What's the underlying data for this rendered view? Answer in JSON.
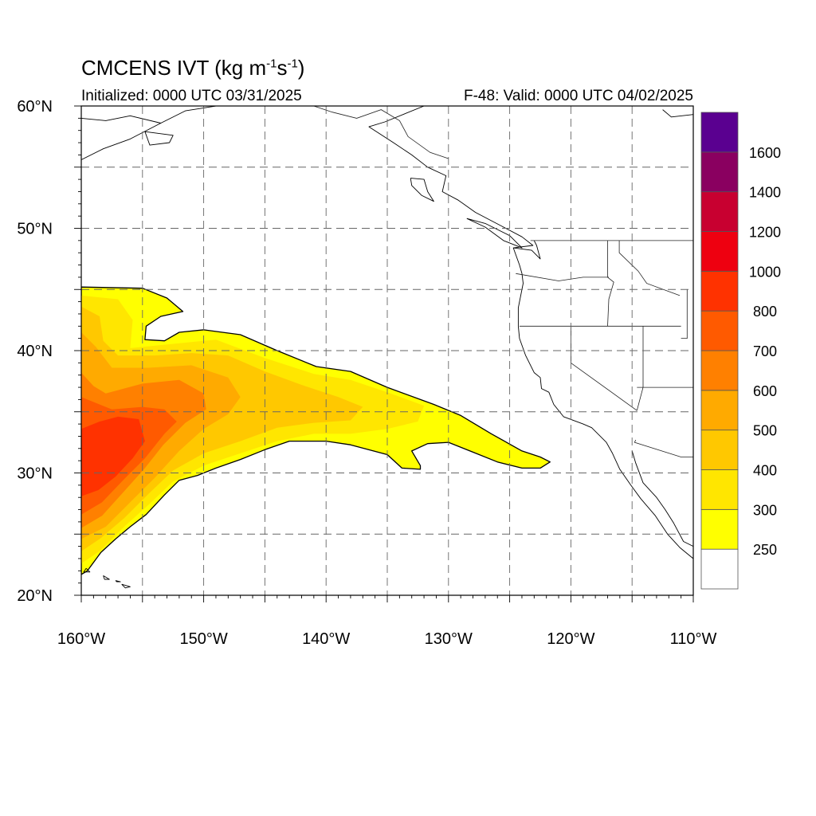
{
  "header": {
    "title_prefix": "CMCENS IVT (kg m",
    "title_exp1": "-1",
    "title_mid": "s",
    "title_exp2": "-1",
    "title_suffix": ")",
    "initialized": "Initialized: 0000 UTC 03/31/2025",
    "valid": "F-48: Valid: 0000 UTC 04/02/2025"
  },
  "map": {
    "projection": "cylindrical equidistant",
    "lon_range": [
      -160,
      -110
    ],
    "lat_range": [
      20,
      60
    ],
    "lat_ticks": [
      {
        "value": 20,
        "label": "20°N"
      },
      {
        "value": 30,
        "label": "30°N"
      },
      {
        "value": 40,
        "label": "40°N"
      },
      {
        "value": 50,
        "label": "50°N"
      },
      {
        "value": 60,
        "label": "60°N"
      }
    ],
    "lon_ticks": [
      {
        "value": -160,
        "label": "160°W"
      },
      {
        "value": -150,
        "label": "150°W"
      },
      {
        "value": -140,
        "label": "140°W"
      },
      {
        "value": -130,
        "label": "130°W"
      },
      {
        "value": -120,
        "label": "120°W"
      },
      {
        "value": -110,
        "label": "110°W"
      }
    ],
    "gridlines": "dashed, every 5°",
    "background": "#ffffff",
    "features": [
      "coastlines",
      "US state borders",
      "Canada-US border",
      "Mexico border"
    ]
  },
  "colorbar": {
    "orientation": "vertical",
    "placement": "right",
    "levels": [
      {
        "label": "",
        "color": "#ffffff"
      },
      {
        "label": "250",
        "color": "#ffff00"
      },
      {
        "label": "300",
        "color": "#ffe600"
      },
      {
        "label": "400",
        "color": "#ffc800"
      },
      {
        "label": "500",
        "color": "#ffaa00"
      },
      {
        "label": "600",
        "color": "#ff8000"
      },
      {
        "label": "700",
        "color": "#ff5a00"
      },
      {
        "label": "800",
        "color": "#ff3200"
      },
      {
        "label": "1000",
        "color": "#ee0010"
      },
      {
        "label": "1200",
        "color": "#c80030"
      },
      {
        "label": "1400",
        "color": "#8a0060"
      },
      {
        "label": "1600",
        "color": "#5a0090"
      }
    ]
  },
  "chart_data": {
    "type": "heatmap",
    "variable": "Integrated vapor transport",
    "units": "kg m-1 s-1",
    "region": {
      "lon": [
        -160,
        -110
      ],
      "lat": [
        20,
        60
      ]
    },
    "thresholds": [
      250,
      300,
      400,
      500,
      600,
      700,
      800,
      1000,
      1200,
      1400,
      1600
    ],
    "atmospheric_river": {
      "max_ivt_approx": 800,
      "max_location": {
        "lon": -157,
        "lat": 32
      },
      "extent_lon": [
        -160,
        -121
      ],
      "extent_lat": [
        21,
        45
      ]
    },
    "contour_regions": [
      {
        "min_ivt": 250,
        "color": "#ffff00",
        "polygon": [
          [
            -160,
            45.2
          ],
          [
            -155,
            45.1
          ],
          [
            -153,
            44.3
          ],
          [
            -151.7,
            43.2
          ],
          [
            -153.5,
            42.8
          ],
          [
            -154.7,
            42
          ],
          [
            -154.8,
            40.9
          ],
          [
            -153.2,
            40.8
          ],
          [
            -152,
            41.5
          ],
          [
            -150,
            41.7
          ],
          [
            -147,
            41.3
          ],
          [
            -144,
            40
          ],
          [
            -140.8,
            38.7
          ],
          [
            -138,
            38.3
          ],
          [
            -135,
            37
          ],
          [
            -131.2,
            35.6
          ],
          [
            -129,
            34.7
          ],
          [
            -126.5,
            33.2
          ],
          [
            -124,
            31.8
          ],
          [
            -122.5,
            31.3
          ],
          [
            -121.7,
            30.9
          ],
          [
            -122.5,
            30.4
          ],
          [
            -124,
            30.4
          ],
          [
            -126,
            30.9
          ],
          [
            -128,
            31.7
          ],
          [
            -130,
            32.5
          ],
          [
            -131.7,
            32.4
          ],
          [
            -133,
            31.8
          ],
          [
            -132.3,
            30.6
          ],
          [
            -132.3,
            30.3
          ],
          [
            -133.8,
            30.4
          ],
          [
            -135,
            31.5
          ],
          [
            -138,
            32.3
          ],
          [
            -140,
            32.6
          ],
          [
            -143,
            32.6
          ],
          [
            -145,
            31.9
          ],
          [
            -147,
            31.1
          ],
          [
            -149,
            30.4
          ],
          [
            -150.5,
            29.8
          ],
          [
            -152,
            29.4
          ],
          [
            -153.2,
            28.2
          ],
          [
            -154.7,
            26.6
          ],
          [
            -156,
            25.6
          ],
          [
            -157.2,
            24.6
          ],
          [
            -158.4,
            23.5
          ],
          [
            -159.5,
            22.0
          ],
          [
            -160,
            21.7
          ]
        ]
      },
      {
        "min_ivt": 300,
        "color": "#ffe600",
        "polygon": [
          [
            -160,
            44.5
          ],
          [
            -157,
            44.2
          ],
          [
            -155.8,
            42.5
          ],
          [
            -156,
            40.2
          ],
          [
            -152,
            40.6
          ],
          [
            -149,
            40.9
          ],
          [
            -145,
            39.4
          ],
          [
            -141,
            38.1
          ],
          [
            -138,
            37.6
          ],
          [
            -135,
            36.6
          ],
          [
            -132,
            35.5
          ],
          [
            -132.5,
            34.2
          ],
          [
            -135,
            33.6
          ],
          [
            -138,
            33.2
          ],
          [
            -141,
            33.2
          ],
          [
            -144,
            32.6
          ],
          [
            -147,
            31.6
          ],
          [
            -150,
            30.6
          ],
          [
            -152.5,
            29.3
          ],
          [
            -154.5,
            27.4
          ],
          [
            -156.5,
            25.6
          ],
          [
            -158.5,
            23.6
          ],
          [
            -160,
            22.6
          ]
        ]
      },
      {
        "min_ivt": 400,
        "color": "#ffc800",
        "polygon": [
          [
            -160,
            43.6
          ],
          [
            -158.5,
            42.8
          ],
          [
            -158.2,
            40.8
          ],
          [
            -157,
            39.6
          ],
          [
            -154,
            39.6
          ],
          [
            -151,
            39.8
          ],
          [
            -148,
            39.6
          ],
          [
            -145,
            38.3
          ],
          [
            -142,
            37.2
          ],
          [
            -139,
            36.2
          ],
          [
            -137,
            35.4
          ],
          [
            -138,
            34.3
          ],
          [
            -141,
            34.1
          ],
          [
            -144,
            33.7
          ],
          [
            -147,
            32.6
          ],
          [
            -150,
            31.6
          ],
          [
            -152.5,
            30.2
          ],
          [
            -154.5,
            28.3
          ],
          [
            -156.5,
            26.3
          ],
          [
            -158.5,
            24.6
          ],
          [
            -160,
            23.6
          ]
        ]
      },
      {
        "min_ivt": 500,
        "color": "#ffaa00",
        "polygon": [
          [
            -160,
            41.5
          ],
          [
            -158.8,
            40.3
          ],
          [
            -157.5,
            38.6
          ],
          [
            -154.5,
            38.6
          ],
          [
            -151,
            38.8
          ],
          [
            -148,
            37.8
          ],
          [
            -147,
            36.2
          ],
          [
            -148,
            34.8
          ],
          [
            -150,
            33.6
          ],
          [
            -152,
            31.8
          ],
          [
            -154,
            29.6
          ],
          [
            -156,
            27.6
          ],
          [
            -158,
            25.6
          ],
          [
            -160,
            24.6
          ]
        ]
      },
      {
        "min_ivt": 600,
        "color": "#ff8000",
        "polygon": [
          [
            -160,
            38.2
          ],
          [
            -159,
            37.1
          ],
          [
            -158,
            36.5
          ],
          [
            -155,
            37.3
          ],
          [
            -152,
            37.6
          ],
          [
            -150,
            36.5
          ],
          [
            -149.8,
            35.2
          ],
          [
            -151.5,
            34.1
          ],
          [
            -153.3,
            32.3
          ],
          [
            -154.8,
            30.4
          ],
          [
            -156.5,
            28.5
          ],
          [
            -158.3,
            26.5
          ],
          [
            -160,
            25.5
          ]
        ]
      },
      {
        "min_ivt": 700,
        "color": "#ff5a00",
        "polygon": [
          [
            -160,
            36.2
          ],
          [
            -157.5,
            35.2
          ],
          [
            -155,
            35.4
          ],
          [
            -153.2,
            35.2
          ],
          [
            -152.2,
            34.2
          ],
          [
            -153.2,
            33.2
          ],
          [
            -154.8,
            31.2
          ],
          [
            -156.5,
            29.5
          ],
          [
            -158.3,
            27.6
          ],
          [
            -160,
            26.6
          ]
        ]
      },
      {
        "min_ivt": 800,
        "color": "#ff3200",
        "polygon": [
          [
            -160,
            33.6
          ],
          [
            -158.5,
            34.2
          ],
          [
            -157,
            34.6
          ],
          [
            -155.3,
            34.4
          ],
          [
            -154.8,
            32.6
          ],
          [
            -155.8,
            31.2
          ],
          [
            -157.2,
            29.7
          ],
          [
            -158.6,
            28.6
          ],
          [
            -160,
            28.1
          ]
        ]
      }
    ]
  },
  "geography": {
    "polylines": [
      [
        [
          -118.5,
          60
        ],
        [
          -132,
          60
        ],
        [
          -135.2,
          58.7
        ],
        [
          -136.5,
          58.3
        ],
        [
          -134.5,
          57
        ],
        [
          -133,
          56
        ],
        [
          -131.7,
          55
        ],
        [
          -130.2,
          54.3
        ],
        [
          -130.5,
          53
        ],
        [
          -129.2,
          52.3
        ],
        [
          -127.8,
          51.3
        ],
        [
          -125.5,
          50.1
        ],
        [
          -124,
          49.3
        ],
        [
          -123.1,
          48.6
        ],
        [
          -124.7,
          48.4
        ],
        [
          -124.2,
          47
        ],
        [
          -124,
          46.3
        ],
        [
          -123.9,
          45.5
        ],
        [
          -124.3,
          43.5
        ],
        [
          -124.3,
          42
        ],
        [
          -124.2,
          41
        ],
        [
          -123.7,
          39.6
        ],
        [
          -123,
          38.2
        ],
        [
          -122.5,
          37.8
        ],
        [
          -122.4,
          36.9
        ],
        [
          -121.8,
          36.6
        ],
        [
          -121.4,
          35.6
        ],
        [
          -120.6,
          34.6
        ],
        [
          -119,
          34
        ],
        [
          -118.3,
          33.7
        ],
        [
          -117.1,
          32.5
        ],
        [
          -116.6,
          31.6
        ],
        [
          -116,
          30.3
        ],
        [
          -115.1,
          29
        ],
        [
          -114.3,
          27.9
        ],
        [
          -113.1,
          26.5
        ],
        [
          -112.1,
          25
        ],
        [
          -111.1,
          23.9
        ],
        [
          -110,
          23
        ]
      ],
      [
        [
          -124.7,
          48.4
        ],
        [
          -123.2,
          48.2
        ],
        [
          -122.5,
          47.5
        ],
        [
          -122.8,
          48.6
        ],
        [
          -123,
          49
        ]
      ],
      [
        [
          -128.5,
          50.8
        ],
        [
          -127,
          50.1
        ],
        [
          -125.5,
          49
        ],
        [
          -124,
          48.4
        ],
        [
          -125,
          49.4
        ],
        [
          -127,
          50.4
        ],
        [
          -128.5,
          50.8
        ]
      ],
      [
        [
          -133.1,
          54.1
        ],
        [
          -132,
          54
        ],
        [
          -131.7,
          53
        ],
        [
          -131.2,
          52.2
        ],
        [
          -132.2,
          52.7
        ],
        [
          -133,
          53.5
        ],
        [
          -133.1,
          54.1
        ]
      ],
      [
        [
          -115,
          31.8
        ],
        [
          -114.7,
          30.8
        ],
        [
          -114.1,
          29.2
        ],
        [
          -113,
          28
        ],
        [
          -112.3,
          27
        ],
        [
          -111.6,
          25.9
        ],
        [
          -110.8,
          24.4
        ],
        [
          -110,
          24
        ]
      ],
      [
        [
          -160,
          59
        ],
        [
          -158,
          58.8
        ],
        [
          -156,
          59.2
        ],
        [
          -153.5,
          58.6
        ],
        [
          -156,
          57.3
        ],
        [
          -158.2,
          56.5
        ],
        [
          -160,
          55.6
        ]
      ],
      [
        [
          -153.5,
          58.6
        ],
        [
          -151.5,
          59.6
        ],
        [
          -149,
          60
        ]
      ],
      [
        [
          -154.8,
          57.9
        ],
        [
          -152.5,
          57.6
        ],
        [
          -152.8,
          57
        ],
        [
          -154.4,
          56.8
        ],
        [
          -154.8,
          57.9
        ]
      ],
      [
        [
          -159.6,
          22.2
        ],
        [
          -159.3,
          21.9
        ],
        [
          -159.8,
          21.9
        ],
        [
          -159.6,
          22.2
        ]
      ],
      [
        [
          -158.2,
          21.6
        ],
        [
          -157.7,
          21.3
        ],
        [
          -158.1,
          21.3
        ],
        [
          -158.2,
          21.6
        ]
      ],
      [
        [
          -157.2,
          21.2
        ],
        [
          -156.8,
          21.1
        ],
        [
          -157.1,
          21.1
        ],
        [
          -157.2,
          21.2
        ]
      ],
      [
        [
          -156.7,
          20.9
        ],
        [
          -156,
          20.7
        ],
        [
          -156.4,
          20.6
        ],
        [
          -156.7,
          20.9
        ]
      ],
      [
        [
          -112.5,
          59.7
        ],
        [
          -111.8,
          59.1
        ],
        [
          -110,
          59.3
        ]
      ]
    ],
    "borders": [
      [
        [
          -141,
          60
        ],
        [
          -139.5,
          59.5
        ],
        [
          -137.5,
          59
        ],
        [
          -135.5,
          59.7
        ],
        [
          -134,
          58.8
        ],
        [
          -133.3,
          57.5
        ],
        [
          -131.5,
          56.2
        ],
        [
          -130,
          55.7
        ]
      ],
      [
        [
          -123.3,
          49
        ],
        [
          -110,
          49
        ]
      ],
      [
        [
          -124.5,
          46.3
        ],
        [
          -121,
          45.7
        ],
        [
          -119,
          46
        ],
        [
          -116.9,
          46
        ]
      ],
      [
        [
          -124.2,
          42
        ],
        [
          -111,
          42
        ]
      ],
      [
        [
          -120,
          42
        ],
        [
          -120,
          39
        ],
        [
          -114.6,
          35.1
        ]
      ],
      [
        [
          -117,
          49
        ],
        [
          -117,
          46
        ],
        [
          -116.5,
          45.6
        ],
        [
          -116.9,
          44.2
        ],
        [
          -117,
          42
        ]
      ],
      [
        [
          -114.1,
          42
        ],
        [
          -114.1,
          37
        ],
        [
          -114.6,
          35.1
        ]
      ],
      [
        [
          -114.6,
          37
        ],
        [
          -110,
          37
        ]
      ],
      [
        [
          -110.5,
          45
        ],
        [
          -110.5,
          41
        ],
        [
          -111,
          41
        ]
      ],
      [
        [
          -114.7,
          32.7
        ],
        [
          -114.8,
          32.5
        ],
        [
          -111,
          31.3
        ],
        [
          -110,
          31.3
        ]
      ],
      [
        [
          -116.05,
          49
        ],
        [
          -116.05,
          48
        ],
        [
          -114.5,
          46.5
        ],
        [
          -113.8,
          45.5
        ],
        [
          -111.1,
          44.5
        ]
      ]
    ]
  }
}
